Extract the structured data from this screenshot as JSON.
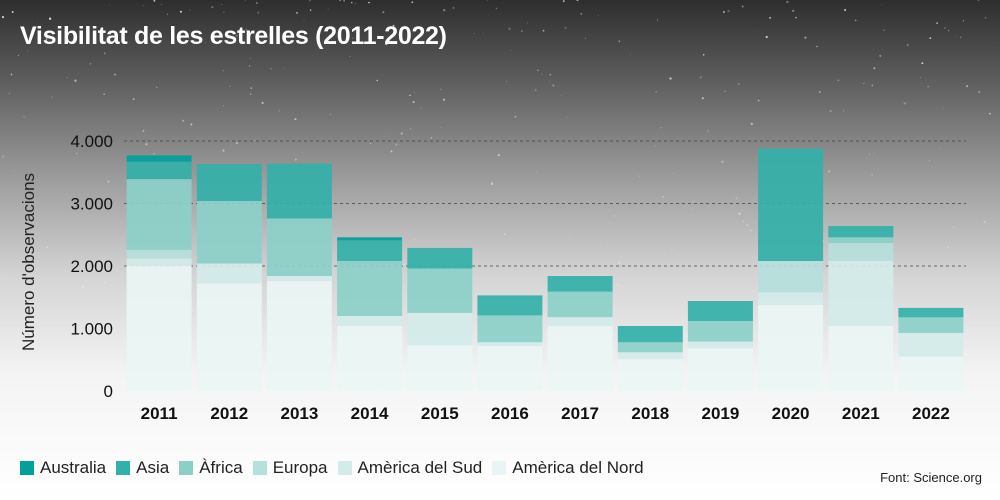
{
  "title": "Visibilitat de les estrelles (2011-2022)",
  "source": "Font: Science.org",
  "chart_data": {
    "type": "bar",
    "stacked": true,
    "ylabel": "Número d'observacions",
    "xlabel": "",
    "ylim": [
      0,
      4000
    ],
    "yticks": [
      0,
      1000,
      2000,
      3000,
      4000
    ],
    "ytick_labels": [
      "0",
      "1.000",
      "2.000",
      "3.000",
      "4.000"
    ],
    "grid_lines_at": [
      2000,
      3000,
      4000
    ],
    "legend_position": "bottom",
    "categories": [
      "2011",
      "2012",
      "2013",
      "2014",
      "2015",
      "2016",
      "2017",
      "2018",
      "2019",
      "2020",
      "2021",
      "2022"
    ],
    "series": [
      {
        "name": "Amèrica del Nord",
        "color": "#e9f5f4",
        "values": [
          2000,
          1720,
          1760,
          1040,
          730,
          720,
          1040,
          510,
          680,
          1380,
          1040,
          550
        ]
      },
      {
        "name": "Amèrica del Sud",
        "color": "#d3ecea",
        "values": [
          120,
          320,
          80,
          160,
          520,
          60,
          140,
          110,
          110,
          200,
          1040,
          380
        ]
      },
      {
        "name": "Europa",
        "color": "#b5e0dc",
        "values": [
          140,
          0,
          0,
          0,
          0,
          0,
          0,
          0,
          0,
          500,
          290,
          0
        ]
      },
      {
        "name": "Àfrica",
        "color": "#8ccfc9",
        "values": [
          1130,
          1000,
          920,
          880,
          710,
          430,
          410,
          160,
          330,
          0,
          90,
          250
        ]
      },
      {
        "name": "Asia",
        "color": "#33b0a8",
        "values": [
          280,
          590,
          880,
          330,
          330,
          320,
          250,
          260,
          320,
          1800,
          180,
          150
        ]
      },
      {
        "name": "Australia",
        "color": "#00a19a",
        "values": [
          100,
          0,
          0,
          50,
          0,
          0,
          0,
          0,
          0,
          0,
          0,
          0
        ]
      }
    ],
    "legend_order": [
      "Australia",
      "Asia",
      "Àfrica",
      "Europa",
      "Amèrica del Sud",
      "Amèrica del Nord"
    ]
  }
}
